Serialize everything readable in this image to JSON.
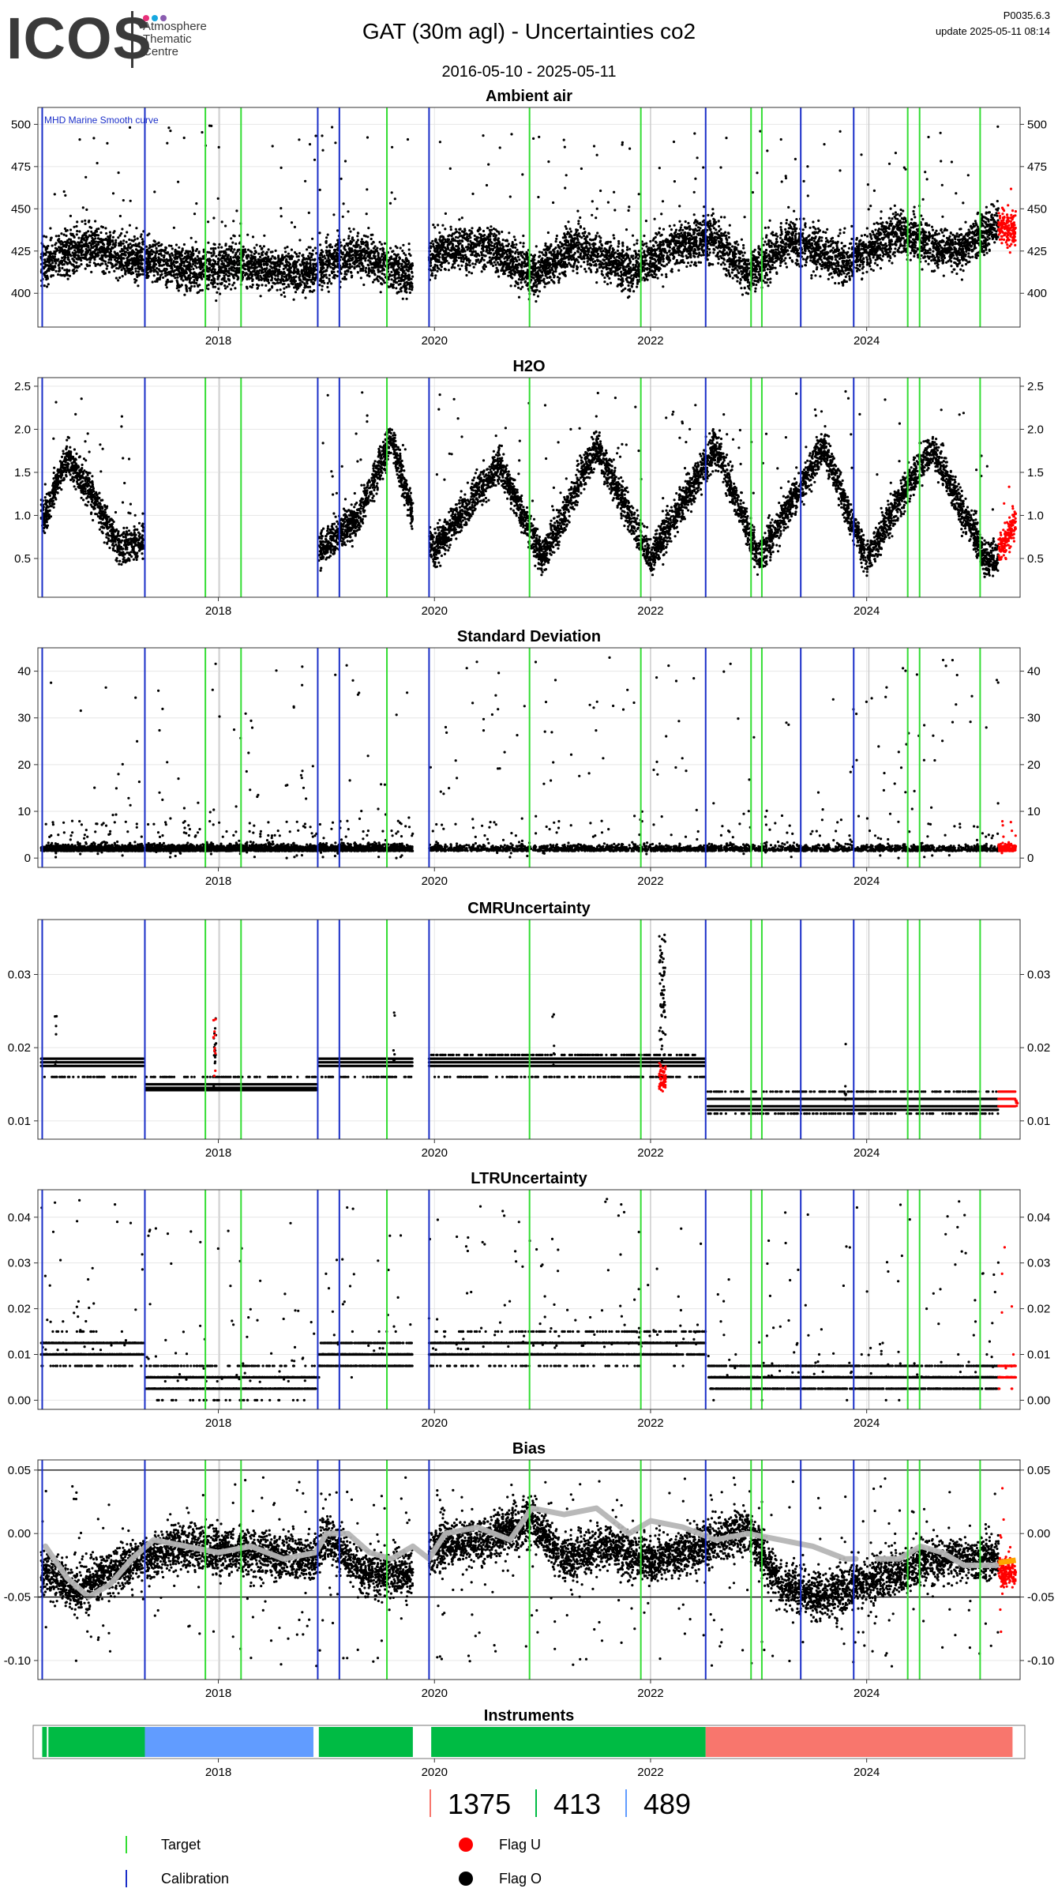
{
  "header": {
    "logo_word": "ICOS",
    "logo_lines": [
      "Atmosphere",
      "Thematic",
      "Centre"
    ],
    "logo_dot_colors": [
      "#e8307a",
      "#17a8e0",
      "#8a5cb0"
    ],
    "title": "GAT  (30m agl) - Uncertainties co2",
    "date_range": "2016-05-10 - 2025-05-11",
    "code": "P0035.6.3",
    "update": "update  2025-05-11 08:14"
  },
  "colors": {
    "data": "#000000",
    "flag_u": "#ff0000",
    "flag_u_bias": "#ffa500",
    "target": "#33dd33",
    "calibration": "#1a2ec8",
    "grey_line": "#cccccc",
    "smooth": "#b5b5b5"
  },
  "events": {
    "target": [
      2017.88,
      2018.21,
      2019.56,
      2020.88,
      2021.91,
      2022.93,
      2023.03,
      2024.38,
      2024.49,
      2025.05
    ],
    "calibration": [
      2016.37,
      2017.32,
      2018.92,
      2019.12,
      2019.95,
      2022.51,
      2023.39,
      2023.88
    ],
    "grey": [
      2018.01,
      2022.0,
      2024.02
    ]
  },
  "chart_data": [
    {
      "type": "scatter",
      "title": "Ambient air",
      "annotation": "MHD Marine Smooth curve",
      "xlim": [
        2016.33,
        2025.42
      ],
      "ylim": [
        380,
        510
      ],
      "yticks": [
        400,
        425,
        450,
        475,
        500
      ],
      "xticks": [
        2018,
        2020,
        2022,
        2024
      ],
      "series": [
        {
          "flag": "O",
          "segments": [
            [
              2016.36,
              2017.31
            ],
            [
              2017.33,
              2018.91
            ],
            [
              2018.93,
              2019.8
            ],
            [
              2019.95,
              2025.22
            ]
          ],
          "baseline": [
            [
              2016.4,
              418
            ],
            [
              2016.8,
              428
            ],
            [
              2017.3,
              420
            ],
            [
              2017.8,
              414
            ],
            [
              2018.2,
              418
            ],
            [
              2018.8,
              412
            ],
            [
              2019.3,
              424
            ],
            [
              2019.8,
              410
            ],
            [
              2020.0,
              424
            ],
            [
              2020.5,
              428
            ],
            [
              2020.9,
              410
            ],
            [
              2021.3,
              428
            ],
            [
              2021.8,
              414
            ],
            [
              2022.3,
              430
            ],
            [
              2022.6,
              432
            ],
            [
              2022.9,
              412
            ],
            [
              2023.3,
              432
            ],
            [
              2023.8,
              418
            ],
            [
              2024.3,
              436
            ],
            [
              2024.8,
              424
            ],
            [
              2025.2,
              440
            ]
          ],
          "spread": 22,
          "outlier_max": 500
        },
        {
          "flag": "U",
          "segments": [
            [
              2025.22,
              2025.38
            ]
          ],
          "baseline": [
            [
              2025.22,
              440
            ],
            [
              2025.38,
              438
            ]
          ],
          "spread": 18,
          "outlier_max": 462
        }
      ]
    },
    {
      "type": "scatter",
      "title": "H2O",
      "xlim": [
        2016.33,
        2025.42
      ],
      "ylim": [
        0.05,
        2.6
      ],
      "yticks": [
        0.5,
        1.0,
        1.5,
        2.0,
        2.5
      ],
      "ytick_labels": [
        "0.5",
        "1.0",
        "1.5",
        "2.0",
        "2.5"
      ],
      "xticks": [
        2018,
        2020,
        2022,
        2024
      ],
      "series": [
        {
          "flag": "O",
          "segments": [
            [
              2016.36,
              2017.31
            ],
            [
              2018.93,
              2019.8
            ],
            [
              2019.95,
              2025.22
            ]
          ],
          "baseline": [
            [
              2016.4,
              1.0
            ],
            [
              2016.6,
              1.7
            ],
            [
              2016.8,
              1.3
            ],
            [
              2017.1,
              0.6
            ],
            [
              2017.3,
              0.7
            ],
            [
              2018.95,
              0.6
            ],
            [
              2019.3,
              1.0
            ],
            [
              2019.6,
              1.9
            ],
            [
              2019.8,
              1.0
            ],
            [
              2020.0,
              0.6
            ],
            [
              2020.6,
              1.6
            ],
            [
              2021.0,
              0.5
            ],
            [
              2021.5,
              1.8
            ],
            [
              2022.0,
              0.5
            ],
            [
              2022.6,
              1.8
            ],
            [
              2023.0,
              0.5
            ],
            [
              2023.6,
              1.8
            ],
            [
              2024.0,
              0.5
            ],
            [
              2024.6,
              1.8
            ],
            [
              2025.1,
              0.5
            ]
          ],
          "spread": 0.35,
          "outlier_max": 2.45
        },
        {
          "flag": "U",
          "segments": [
            [
              2025.22,
              2025.38
            ]
          ],
          "baseline": [
            [
              2025.22,
              0.6
            ],
            [
              2025.38,
              0.9
            ]
          ],
          "spread": 0.35,
          "outlier_max": 1.65
        }
      ]
    },
    {
      "type": "scatter",
      "title": "Standard Deviation",
      "xlim": [
        2016.33,
        2025.42
      ],
      "ylim": [
        -2,
        45
      ],
      "yticks": [
        0,
        10,
        20,
        30,
        40
      ],
      "xticks": [
        2018,
        2020,
        2022,
        2024
      ],
      "series": [
        {
          "flag": "O",
          "segments": [
            [
              2016.36,
              2017.31
            ],
            [
              2017.33,
              2018.91
            ],
            [
              2018.93,
              2019.8
            ],
            [
              2019.95,
              2025.22
            ]
          ],
          "baseline": [
            [
              2016.4,
              1.5
            ],
            [
              2025.2,
              1.5
            ]
          ],
          "spread": 1.5,
          "outlier_max": 43
        },
        {
          "flag": "U",
          "segments": [
            [
              2025.22,
              2025.38
            ]
          ],
          "baseline": [
            [
              2025.22,
              1.5
            ],
            [
              2025.38,
              1.5
            ]
          ],
          "spread": 1.5,
          "outlier_max": 12
        }
      ]
    },
    {
      "type": "scatter",
      "title": "CMRUncertainty",
      "xlim": [
        2016.33,
        2025.42
      ],
      "ylim": [
        0.0075,
        0.0375
      ],
      "yticks": [
        0.01,
        0.02,
        0.03
      ],
      "ytick_labels": [
        "0.01",
        "0.02",
        "0.03"
      ],
      "xticks": [
        2018,
        2020,
        2022,
        2024
      ],
      "series": [
        {
          "flag": "O",
          "levels": [
            {
              "from": 2016.36,
              "to": 2017.31,
              "values": [
                0.0175,
                0.018,
                0.0185,
                0.016
              ]
            },
            {
              "from": 2017.33,
              "to": 2018.91,
              "values": [
                0.0145,
                0.0142,
                0.015,
                0.016
              ]
            },
            {
              "from": 2018.93,
              "to": 2019.8,
              "values": [
                0.0175,
                0.018,
                0.0185,
                0.016
              ]
            },
            {
              "from": 2019.95,
              "to": 2022.51,
              "values": [
                0.0175,
                0.018,
                0.0185,
                0.019,
                0.016
              ]
            },
            {
              "from": 2022.53,
              "to": 2025.22,
              "values": [
                0.0115,
                0.012,
                0.013,
                0.011,
                0.014
              ]
            }
          ],
          "outlier_max": 0.036
        },
        {
          "flag": "U",
          "levels": [
            {
              "from": 2025.22,
              "to": 2025.38,
              "values": [
                0.012,
                0.013,
                0.014
              ]
            }
          ],
          "outlier_max": 0.014
        }
      ]
    },
    {
      "type": "scatter",
      "title": "LTRUncertainty",
      "xlim": [
        2016.33,
        2025.42
      ],
      "ylim": [
        -0.002,
        0.046
      ],
      "yticks": [
        0.0,
        0.01,
        0.02,
        0.03,
        0.04
      ],
      "ytick_labels": [
        "0.00",
        "0.01",
        "0.02",
        "0.03",
        "0.04"
      ],
      "xticks": [
        2018,
        2020,
        2022,
        2024
      ],
      "series": [
        {
          "flag": "O",
          "segments": [
            [
              2016.36,
              2017.31
            ],
            [
              2017.33,
              2018.91
            ],
            [
              2018.93,
              2019.8
            ],
            [
              2019.95,
              2022.51
            ],
            [
              2022.53,
              2025.22
            ]
          ],
          "baseline": [
            [
              2016.4,
              0.011
            ],
            [
              2017.3,
              0.011
            ],
            [
              2017.35,
              0.004
            ],
            [
              2018.9,
              0.004
            ],
            [
              2018.95,
              0.01
            ],
            [
              2019.8,
              0.01
            ],
            [
              2019.95,
              0.011
            ],
            [
              2022.5,
              0.012
            ],
            [
              2022.55,
              0.005
            ],
            [
              2025.2,
              0.005
            ]
          ],
          "spread": 0.005,
          "outlier_max": 0.044
        },
        {
          "flag": "U",
          "segments": [
            [
              2025.22,
              2025.38
            ]
          ],
          "baseline": [
            [
              2025.22,
              0.006
            ],
            [
              2025.38,
              0.006
            ]
          ],
          "spread": 0.004,
          "outlier_max": 0.034
        }
      ]
    },
    {
      "type": "line",
      "title": "Bias",
      "xlim": [
        2016.33,
        2025.42
      ],
      "ylim": [
        -0.115,
        0.058
      ],
      "yticks": [
        -0.1,
        -0.05,
        0.0,
        0.05
      ],
      "ytick_labels": [
        "-0.10",
        "-0.05",
        "0.00",
        "0.05"
      ],
      "hlines": [
        0.05,
        -0.05
      ],
      "xticks": [
        2018,
        2020,
        2022,
        2024
      ],
      "series": [
        {
          "flag": "O",
          "segments": [
            [
              2016.36,
              2017.31
            ],
            [
              2017.33,
              2018.91
            ],
            [
              2018.93,
              2019.8
            ],
            [
              2019.95,
              2025.22
            ]
          ],
          "baseline": [
            [
              2016.4,
              -0.03
            ],
            [
              2016.7,
              -0.045
            ],
            [
              2017.0,
              -0.03
            ],
            [
              2017.3,
              -0.02
            ],
            [
              2017.6,
              -0.01
            ],
            [
              2018.3,
              -0.015
            ],
            [
              2018.9,
              -0.02
            ],
            [
              2019.0,
              0.0
            ],
            [
              2019.3,
              -0.03
            ],
            [
              2019.8,
              -0.03
            ],
            [
              2020.0,
              -0.01
            ],
            [
              2020.5,
              -0.005
            ],
            [
              2020.9,
              0.01
            ],
            [
              2021.2,
              -0.02
            ],
            [
              2021.6,
              -0.01
            ],
            [
              2022.0,
              -0.02
            ],
            [
              2022.5,
              -0.01
            ],
            [
              2022.9,
              0.005
            ],
            [
              2023.2,
              -0.04
            ],
            [
              2023.6,
              -0.05
            ],
            [
              2023.9,
              -0.04
            ],
            [
              2024.3,
              -0.03
            ],
            [
              2024.6,
              -0.02
            ],
            [
              2025.0,
              -0.02
            ]
          ],
          "spread": 0.03,
          "outlier_max": 0.045,
          "outlier_min": -0.105
        },
        {
          "flag": "U",
          "segments": [
            [
              2025.22,
              2025.38
            ]
          ],
          "baseline": [
            [
              2025.22,
              -0.03
            ],
            [
              2025.38,
              -0.03
            ]
          ],
          "spread": 0.02,
          "outlier_max": 0.04,
          "outlier_min": -0.082
        },
        {
          "name": "smooth",
          "type": "line",
          "points": [
            [
              2016.4,
              -0.01
            ],
            [
              2016.6,
              -0.035
            ],
            [
              2016.8,
              -0.05
            ],
            [
              2017.0,
              -0.04
            ],
            [
              2017.2,
              -0.02
            ],
            [
              2017.4,
              -0.005
            ],
            [
              2017.7,
              -0.01
            ],
            [
              2018.0,
              -0.015
            ],
            [
              2018.3,
              -0.01
            ],
            [
              2018.6,
              -0.02
            ],
            [
              2018.9,
              -0.015
            ],
            [
              2019.0,
              0.0
            ],
            [
              2019.2,
              0.0
            ],
            [
              2019.4,
              -0.015
            ],
            [
              2019.6,
              -0.02
            ],
            [
              2019.8,
              -0.01
            ],
            [
              2019.95,
              -0.02
            ],
            [
              2020.1,
              0.0
            ],
            [
              2020.4,
              0.005
            ],
            [
              2020.7,
              -0.005
            ],
            [
              2020.9,
              0.02
            ],
            [
              2021.2,
              0.015
            ],
            [
              2021.5,
              0.02
            ],
            [
              2021.8,
              0.0
            ],
            [
              2022.0,
              0.01
            ],
            [
              2022.3,
              0.005
            ],
            [
              2022.6,
              -0.005
            ],
            [
              2022.9,
              0.0
            ],
            [
              2023.2,
              -0.005
            ],
            [
              2023.5,
              -0.01
            ],
            [
              2023.8,
              -0.02
            ],
            [
              2023.9,
              -0.02
            ]
          ],
          "points2": [
            [
              2024.1,
              -0.02
            ],
            [
              2024.3,
              -0.02
            ],
            [
              2024.5,
              -0.01
            ],
            [
              2024.7,
              -0.015
            ],
            [
              2024.9,
              -0.025
            ],
            [
              2025.2,
              -0.025
            ]
          ]
        }
      ]
    },
    {
      "type": "bar",
      "title": "Instruments",
      "xlim": [
        2016.33,
        2025.42
      ],
      "xticks": [
        2018,
        2020,
        2022,
        2024
      ],
      "segments": [
        {
          "from": 2016.37,
          "to": 2017.32,
          "instrument": "413",
          "color": "#00bb44"
        },
        {
          "from": 2017.32,
          "to": 2018.88,
          "instrument": "489",
          "color": "#619cff"
        },
        {
          "from": 2018.93,
          "to": 2019.8,
          "instrument": "413",
          "color": "#00bb44"
        },
        {
          "from": 2019.97,
          "to": 2022.51,
          "instrument": "413",
          "color": "#00bb44"
        },
        {
          "from": 2022.51,
          "to": 2025.35,
          "instrument": "1375",
          "color": "#f8766d"
        }
      ]
    }
  ],
  "instruments_legend": [
    {
      "label": "1375",
      "color": "#f8766d"
    },
    {
      "label": "413",
      "color": "#00bb44"
    },
    {
      "label": "489",
      "color": "#619cff"
    }
  ],
  "legend": {
    "target": "Target",
    "calibration": "Calibration",
    "flag_u": "Flag U",
    "flag_o": "Flag O"
  }
}
